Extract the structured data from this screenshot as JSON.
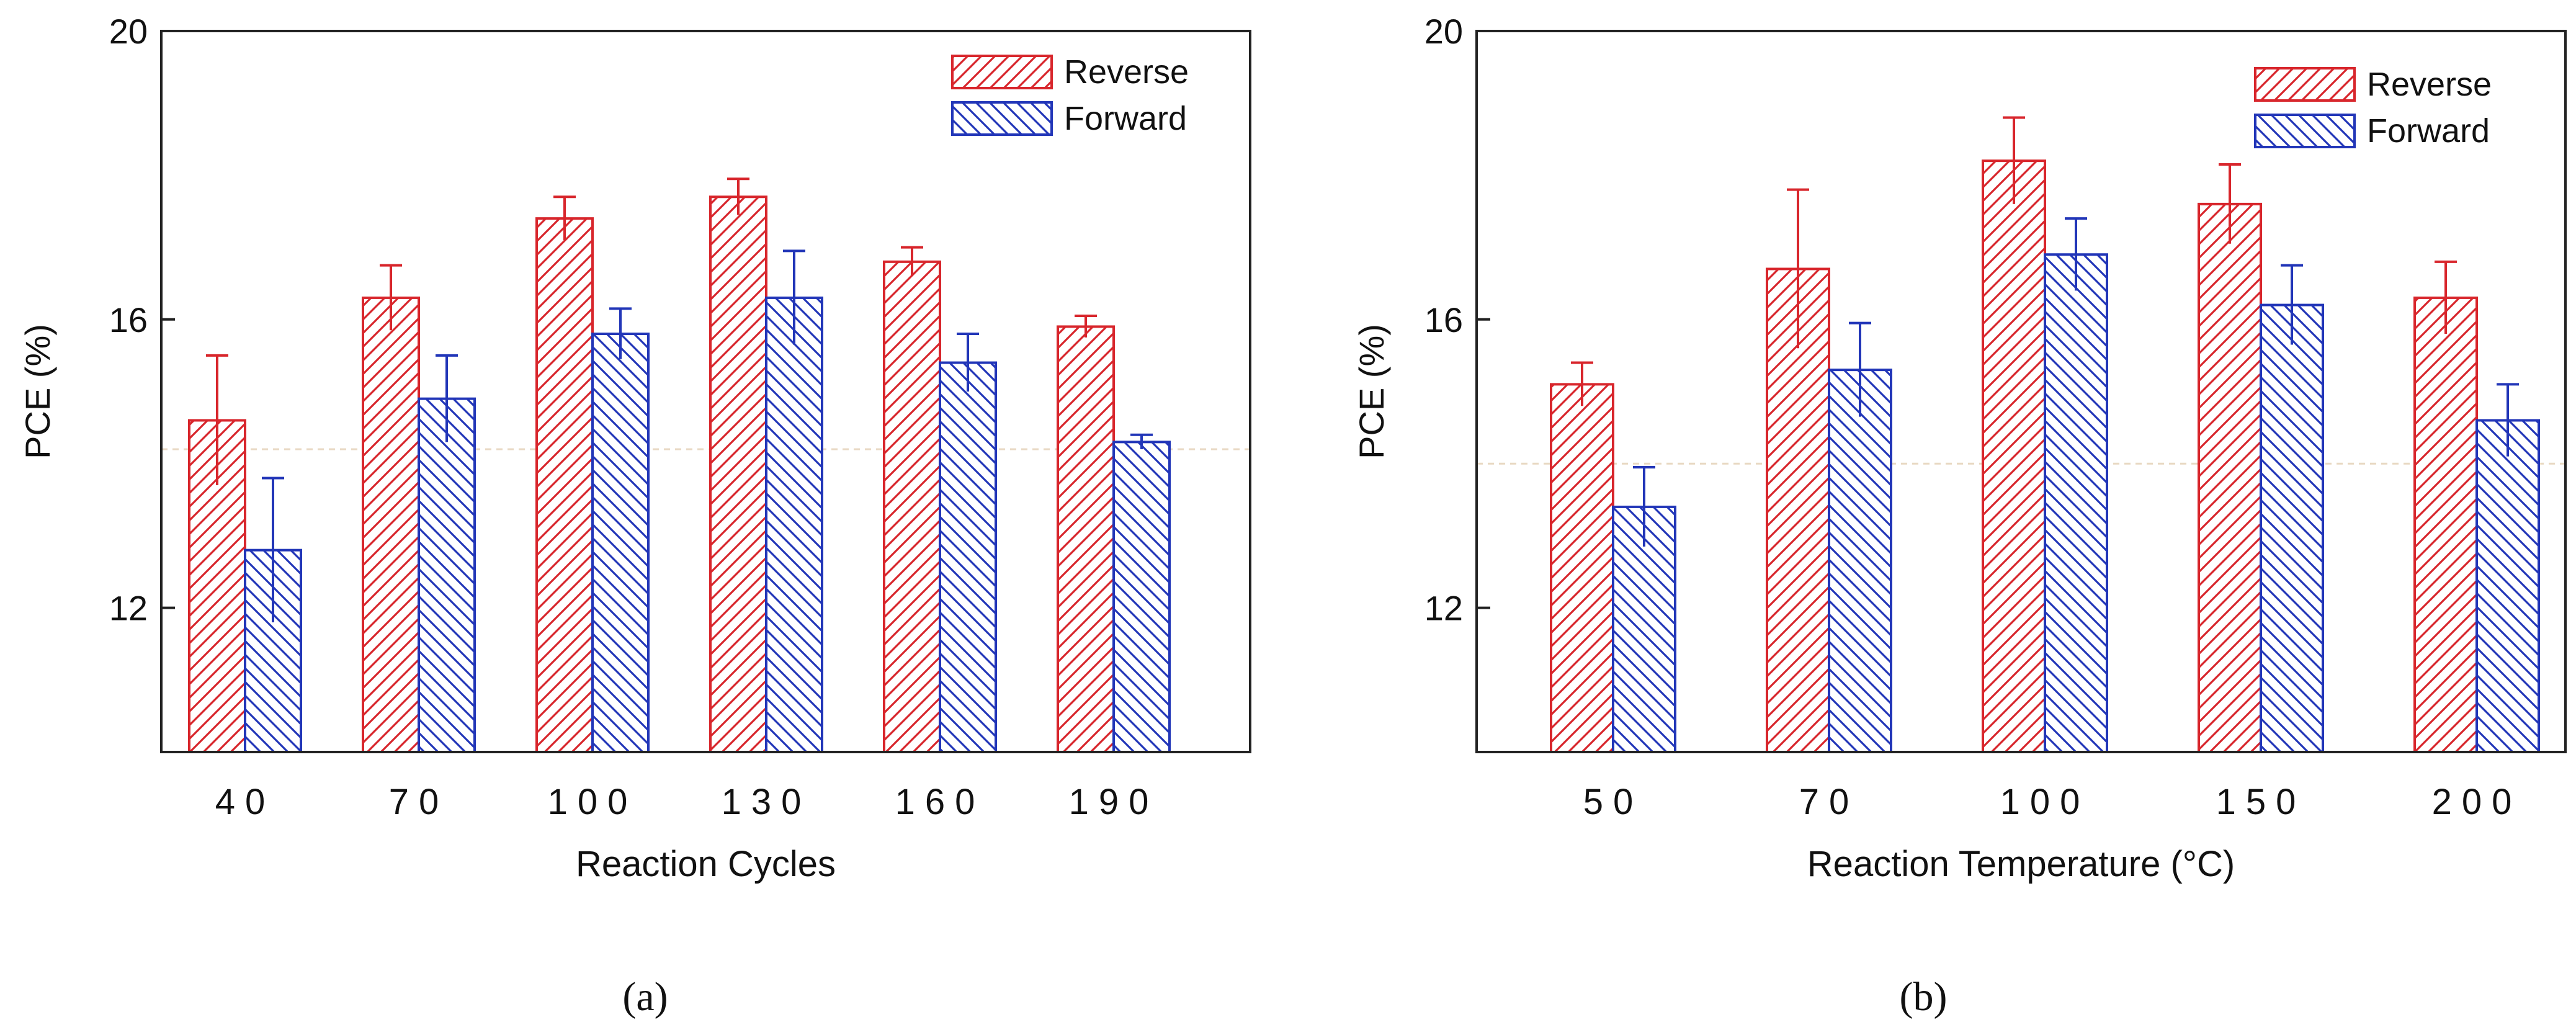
{
  "figure": {
    "panel_labels": [
      "(a)",
      "(b)"
    ],
    "colors": {
      "reverse": "#d8262c",
      "forward": "#2236b8",
      "axis": "#222222",
      "reference_line": "#e8d9c4"
    }
  },
  "chart_data": [
    {
      "type": "bar",
      "panel": "(a)",
      "title": "",
      "xlabel": "Reaction Cycles",
      "ylabel": "PCE (%)",
      "ylim": [
        10,
        20
      ],
      "yticks": [
        12,
        16,
        20
      ],
      "categories": [
        "40",
        "70",
        "100",
        "130",
        "160",
        "190"
      ],
      "legend": {
        "position": "top-right",
        "entries": [
          "Reverse",
          "Forward"
        ]
      },
      "reference_line_y": 14.2,
      "series": [
        {
          "name": "Reverse",
          "pattern": "diagonal-forward",
          "values": [
            14.6,
            16.3,
            17.4,
            17.7,
            16.8,
            15.9
          ],
          "errors": [
            0.9,
            0.45,
            0.3,
            0.25,
            0.2,
            0.15
          ]
        },
        {
          "name": "Forward",
          "pattern": "diagonal-backward",
          "values": [
            12.8,
            14.9,
            15.8,
            16.3,
            15.4,
            14.3
          ],
          "errors": [
            1.0,
            0.6,
            0.35,
            0.65,
            0.4,
            0.1
          ]
        }
      ]
    },
    {
      "type": "bar",
      "panel": "(b)",
      "title": "",
      "xlabel": "Reaction Temperature (°C)",
      "ylabel": "PCE (%)",
      "ylim": [
        10,
        20
      ],
      "yticks": [
        12,
        16,
        20
      ],
      "categories": [
        "50",
        "70",
        "100",
        "150",
        "200"
      ],
      "legend": {
        "position": "top-right",
        "entries": [
          "Reverse",
          "Forward"
        ]
      },
      "reference_line_y": 14.0,
      "series": [
        {
          "name": "Reverse",
          "pattern": "diagonal-forward",
          "values": [
            15.1,
            16.7,
            18.2,
            17.6,
            16.3
          ],
          "errors": [
            0.3,
            1.1,
            0.6,
            0.55,
            0.5
          ]
        },
        {
          "name": "Forward",
          "pattern": "diagonal-backward",
          "values": [
            13.4,
            15.3,
            16.9,
            16.2,
            14.6
          ],
          "errors": [
            0.55,
            0.65,
            0.5,
            0.55,
            0.5
          ]
        }
      ]
    }
  ]
}
